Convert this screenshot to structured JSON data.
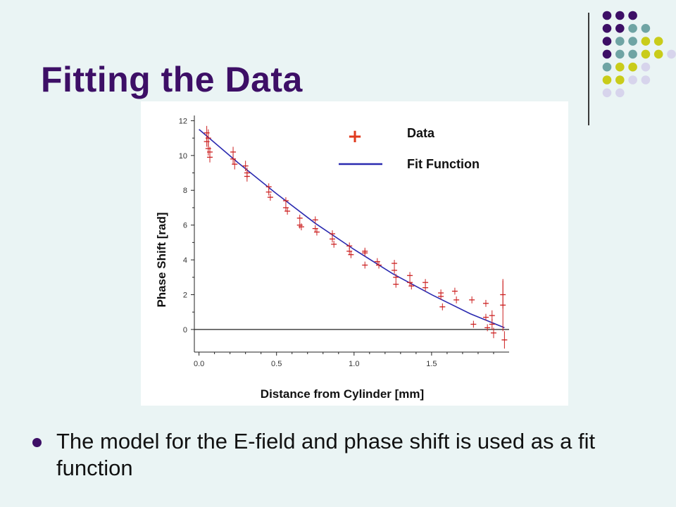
{
  "slide": {
    "title": "Fitting the Data",
    "bullet_text": "The model for the E-field and phase shift is used as a fit function"
  },
  "decor": {
    "colors": {
      "purple": "#3d0f66",
      "teal": "#6fa4a4",
      "olive": "#c9cc1a",
      "lavender": "#d7d4ec"
    },
    "dot_grid": [
      [
        "purple",
        "purple",
        "purple",
        "",
        "",
        ""
      ],
      [
        "purple",
        "purple",
        "teal",
        "teal",
        "",
        ""
      ],
      [
        "purple",
        "teal",
        "teal",
        "olive",
        "olive",
        ""
      ],
      [
        "purple",
        "teal",
        "teal",
        "olive",
        "olive",
        "lavender"
      ],
      [
        "teal",
        "olive",
        "olive",
        "lavender",
        "",
        ""
      ],
      [
        "olive",
        "olive",
        "lavender",
        "lavender",
        "",
        ""
      ],
      [
        "lavender",
        "lavender",
        "",
        "",
        "",
        ""
      ]
    ]
  },
  "chart_data": {
    "type": "scatter",
    "xlabel": "Distance from Cylinder [mm]",
    "ylabel": "Phase Shift [rad]",
    "xlim": [
      -0.03,
      2.0
    ],
    "ylim": [
      -1.3,
      12.3
    ],
    "x_ticks": [
      0.0,
      0.5,
      1.0,
      1.5
    ],
    "x_tick_labels": [
      "0.0",
      "0.5",
      "1.0",
      "1.5"
    ],
    "y_ticks": [
      0,
      2,
      4,
      6,
      8,
      10,
      12
    ],
    "y_tick_labels": [
      "0",
      "2",
      "4",
      "6",
      "8",
      "10",
      "12"
    ],
    "zero_line": true,
    "legend": [
      {
        "label": "Data",
        "symbol": "plus",
        "color": "#e03a1e"
      },
      {
        "label": "Fit Function",
        "symbol": "line",
        "color": "#2a2ab0"
      }
    ],
    "legend_position": "top-right",
    "series": [
      {
        "label": "Data",
        "color": "#cc2020",
        "points": [
          {
            "x": 0.05,
            "y": 11.3,
            "err": 0.4
          },
          {
            "x": 0.05,
            "y": 10.8,
            "err": 0.3
          },
          {
            "x": 0.06,
            "y": 10.4,
            "err": 0.4
          },
          {
            "x": 0.06,
            "y": 11.0,
            "err": 0.5
          },
          {
            "x": 0.07,
            "y": 9.9,
            "err": 0.3
          },
          {
            "x": 0.07,
            "y": 10.2,
            "err": 0.3
          },
          {
            "x": 0.22,
            "y": 10.2,
            "err": 0.3
          },
          {
            "x": 0.22,
            "y": 9.8,
            "err": 0.3
          },
          {
            "x": 0.23,
            "y": 9.5,
            "err": 0.3
          },
          {
            "x": 0.3,
            "y": 9.4,
            "err": 0.3
          },
          {
            "x": 0.31,
            "y": 9.0,
            "err": 0.3
          },
          {
            "x": 0.31,
            "y": 8.8,
            "err": 0.3
          },
          {
            "x": 0.45,
            "y": 8.2,
            "err": 0.2
          },
          {
            "x": 0.45,
            "y": 7.9,
            "err": 0.2
          },
          {
            "x": 0.46,
            "y": 7.6,
            "err": 0.2
          },
          {
            "x": 0.56,
            "y": 7.4,
            "err": 0.2
          },
          {
            "x": 0.56,
            "y": 7.0,
            "err": 0.2
          },
          {
            "x": 0.57,
            "y": 6.8,
            "err": 0.2
          },
          {
            "x": 0.65,
            "y": 6.4,
            "err": 0.2
          },
          {
            "x": 0.65,
            "y": 6.0,
            "err": 0.2
          },
          {
            "x": 0.66,
            "y": 5.9,
            "err": 0.2
          },
          {
            "x": 0.75,
            "y": 6.3,
            "err": 0.2
          },
          {
            "x": 0.75,
            "y": 5.8,
            "err": 0.2
          },
          {
            "x": 0.76,
            "y": 5.6,
            "err": 0.2
          },
          {
            "x": 0.86,
            "y": 5.5,
            "err": 0.2
          },
          {
            "x": 0.86,
            "y": 5.2,
            "err": 0.2
          },
          {
            "x": 0.87,
            "y": 4.9,
            "err": 0.2
          },
          {
            "x": 0.97,
            "y": 4.8,
            "err": 0.2
          },
          {
            "x": 0.97,
            "y": 4.5,
            "err": 0.2
          },
          {
            "x": 0.98,
            "y": 4.3,
            "err": 0.2
          },
          {
            "x": 1.07,
            "y": 4.5,
            "err": 0.2
          },
          {
            "x": 1.07,
            "y": 4.4,
            "err": 0.2
          },
          {
            "x": 1.07,
            "y": 3.7,
            "err": 0.2
          },
          {
            "x": 1.15,
            "y": 3.9,
            "err": 0.2
          },
          {
            "x": 1.16,
            "y": 3.7,
            "err": 0.2
          },
          {
            "x": 1.26,
            "y": 3.8,
            "err": 0.2
          },
          {
            "x": 1.26,
            "y": 3.4,
            "err": 0.2
          },
          {
            "x": 1.27,
            "y": 3.0,
            "err": 0.2
          },
          {
            "x": 1.27,
            "y": 2.6,
            "err": 0.2
          },
          {
            "x": 1.36,
            "y": 3.1,
            "err": 0.2
          },
          {
            "x": 1.36,
            "y": 2.7,
            "err": 0.2
          },
          {
            "x": 1.37,
            "y": 2.5,
            "err": 0.2
          },
          {
            "x": 1.46,
            "y": 2.7,
            "err": 0.2
          },
          {
            "x": 1.46,
            "y": 2.4,
            "err": 0.2
          },
          {
            "x": 1.56,
            "y": 2.1,
            "err": 0.2
          },
          {
            "x": 1.56,
            "y": 1.9,
            "err": 0.2
          },
          {
            "x": 1.57,
            "y": 1.3,
            "err": 0.2
          },
          {
            "x": 1.65,
            "y": 2.2,
            "err": 0.2
          },
          {
            "x": 1.66,
            "y": 1.7,
            "err": 0.2
          },
          {
            "x": 1.76,
            "y": 1.7,
            "err": 0.2
          },
          {
            "x": 1.77,
            "y": 0.3,
            "err": 0.2
          },
          {
            "x": 1.85,
            "y": 1.5,
            "err": 0.2
          },
          {
            "x": 1.85,
            "y": 0.7,
            "err": 0.2
          },
          {
            "x": 1.86,
            "y": 0.1,
            "err": 0.2
          },
          {
            "x": 1.89,
            "y": 0.8,
            "err": 0.3
          },
          {
            "x": 1.89,
            "y": 0.3,
            "err": 0.3
          },
          {
            "x": 1.9,
            "y": -0.2,
            "err": 0.3
          },
          {
            "x": 1.96,
            "y": 2.0,
            "err": 0.8
          },
          {
            "x": 1.96,
            "y": 1.4,
            "err": 1.5
          },
          {
            "x": 1.97,
            "y": -0.6,
            "err": 0.5
          }
        ]
      },
      {
        "label": "Fit Function",
        "color": "#2a2ab0",
        "points": [
          {
            "x": 0.0,
            "y": 11.5
          },
          {
            "x": 0.25,
            "y": 9.6
          },
          {
            "x": 0.5,
            "y": 7.8
          },
          {
            "x": 0.75,
            "y": 6.1
          },
          {
            "x": 1.0,
            "y": 4.6
          },
          {
            "x": 1.25,
            "y": 3.2
          },
          {
            "x": 1.5,
            "y": 2.0
          },
          {
            "x": 1.75,
            "y": 0.9
          },
          {
            "x": 1.97,
            "y": 0.1
          }
        ]
      }
    ]
  }
}
